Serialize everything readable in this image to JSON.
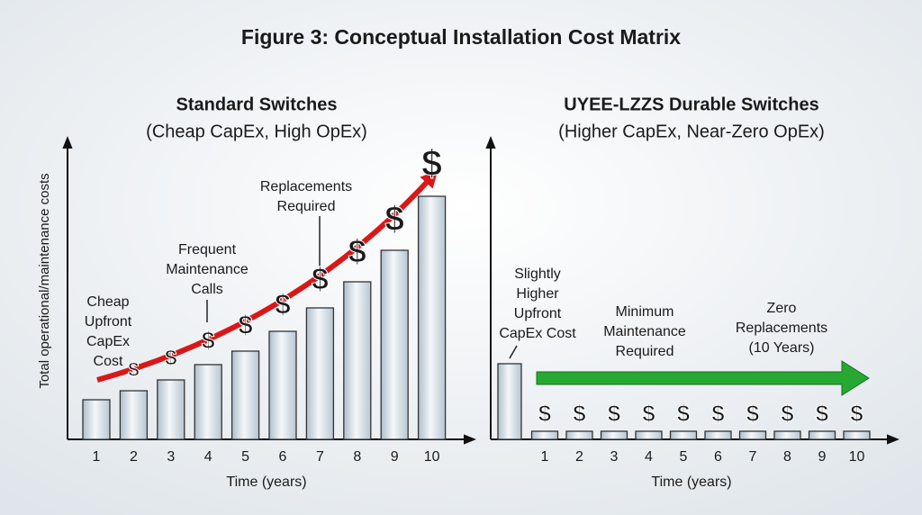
{
  "title": "Figure 3: Conceptual Installation Cost Matrix",
  "chart_data": [
    {
      "type": "bar",
      "title": "Standard Switches",
      "subtitle": "(Cheap CapEx, High OpEx)",
      "ylabel": "Total operational/maintenance costs",
      "xlabel": "Time (years)",
      "categories": [
        "1",
        "2",
        "3",
        "4",
        "5",
        "6",
        "7",
        "8",
        "9",
        "10"
      ],
      "values": [
        44,
        54,
        66,
        83,
        98,
        120,
        146,
        175,
        210,
        270
      ],
      "ylim": [
        0,
        330
      ],
      "marker": "$",
      "marker_color": "#d01818",
      "annotations": [
        {
          "lines": [
            "Cheap",
            "Upfront",
            "CapEx",
            "Cost"
          ]
        },
        {
          "lines": [
            "Frequent",
            "Maintenance",
            "Calls"
          ]
        },
        {
          "lines": [
            "Replacements",
            "Required"
          ]
        }
      ]
    },
    {
      "type": "bar",
      "title": "UYEE-LZZS Durable Switches",
      "subtitle": "(Higher CapEx, Near-Zero OpEx)",
      "xlabel": "Time (years)",
      "categories": [
        null,
        "1",
        "2",
        "3",
        "4",
        "5",
        "6",
        "7",
        "8",
        "9",
        "10"
      ],
      "values": [
        84,
        9,
        9,
        9,
        9,
        9,
        9,
        9,
        9,
        9,
        9
      ],
      "ylim": [
        0,
        330
      ],
      "marker": "$",
      "marker_color": "#1e9a2e",
      "annotations": [
        {
          "lines": [
            "Slightly",
            "Higher",
            "Upfront",
            "CapEx Cost"
          ]
        },
        {
          "lines": [
            "Minimum",
            "Maintenance",
            "Required"
          ]
        },
        {
          "lines": [
            "Zero",
            "Replacements",
            "(10 Years)"
          ]
        }
      ]
    }
  ]
}
